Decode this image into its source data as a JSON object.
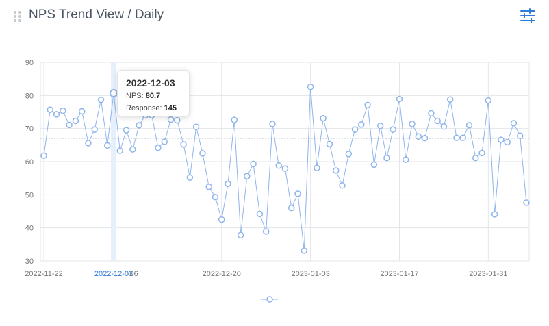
{
  "header": {
    "title": "NPS Trend View / Daily",
    "drag_icon": "drag-handle-icon",
    "settings_icon": "sliders-icon",
    "accent_color": "#2f7bd8"
  },
  "chart_data": {
    "type": "line",
    "title": "NPS Trend View / Daily",
    "xlabel": "",
    "ylabel": "",
    "ylim": [
      30,
      90
    ],
    "yticks": [
      30,
      40,
      50,
      60,
      70,
      80,
      90
    ],
    "x_start_date": "2022-11-22",
    "x_tick_labels": [
      "2022-11-22",
      "2022-12-03",
      "-06",
      "2022-12-20",
      "2023-01-03",
      "2023-01-17",
      "2023-01-31"
    ],
    "x_tick_days": [
      0,
      11,
      14,
      28,
      42,
      56,
      70
    ],
    "grid": true,
    "legend": "bottom-center",
    "average_line": 67,
    "line_color": "#8fb4ec",
    "series": [
      {
        "name": "",
        "values": [
          61.8,
          75.7,
          74.3,
          75.4,
          71.1,
          72.3,
          75.2,
          65.6,
          69.7,
          78.7,
          64.9,
          80.7,
          63.3,
          69.5,
          63.7,
          71.0,
          74.0,
          74.0,
          64.2,
          66.0,
          72.7,
          72.5,
          65.2,
          55.2,
          70.5,
          62.5,
          52.4,
          49.3,
          42.5,
          53.3,
          72.6,
          37.8,
          55.6,
          59.3,
          44.2,
          38.9,
          71.4,
          58.8,
          57.9,
          46.0,
          50.3,
          33.1,
          82.6,
          58.1,
          73.1,
          65.3,
          57.3,
          52.8,
          62.3,
          69.7,
          71.2,
          77.1,
          59.1,
          70.8,
          61.1,
          69.7,
          78.9,
          60.6,
          71.4,
          67.6,
          67.1,
          74.6,
          72.3,
          70.6,
          78.8,
          67.2,
          67.2,
          71.0,
          61.1,
          62.6,
          78.5,
          44.1,
          66.6,
          65.9,
          71.6,
          67.8,
          47.6
        ]
      }
    ]
  },
  "tooltip": {
    "date": "2022-12-03",
    "nps_label": "NPS: ",
    "nps_value": "80.7",
    "response_label": "Response: ",
    "response_value": "145"
  }
}
